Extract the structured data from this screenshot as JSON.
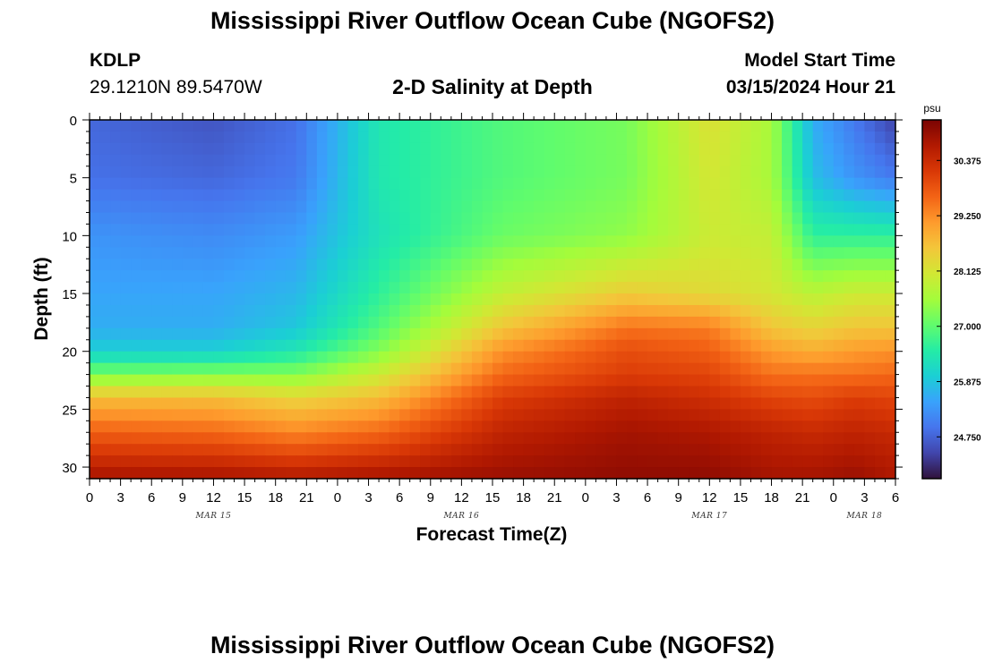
{
  "header": {
    "title": "Mississippi River Outflow Ocean Cube (NGOFS2)",
    "station": "KDLP",
    "coords": "29.1210N  89.5470W",
    "subtitle": "2-D Salinity at Depth",
    "model_label": "Model Start Time",
    "model_time": "03/15/2024 Hour 21"
  },
  "footer": {
    "title": "Mississippi River Outflow Ocean Cube (NGOFS2)"
  },
  "chart_data": {
    "type": "heatmap",
    "title": "2-D Salinity at Depth",
    "xlabel": "Forecast Time(Z)",
    "ylabel": "Depth (ft)",
    "x_unit": "hours",
    "x_tick_labels": [
      "0",
      "3",
      "6",
      "9",
      "12",
      "15",
      "18",
      "21",
      "0",
      "3",
      "6",
      "9",
      "12",
      "15",
      "18",
      "21",
      "0",
      "3",
      "6",
      "9",
      "12",
      "15",
      "18",
      "21",
      "0",
      "3",
      "6"
    ],
    "date_labels": [
      {
        "label": "MAR 15",
        "hour_index": 12
      },
      {
        "label": "MAR 16",
        "hour_index": 36
      },
      {
        "label": "MAR 17",
        "hour_index": 60
      },
      {
        "label": "MAR 18",
        "hour_index": 75
      }
    ],
    "y_ticks": [
      0,
      5,
      10,
      15,
      20,
      25,
      30
    ],
    "ylim": [
      0,
      31
    ],
    "x_range_hours": [
      0,
      78
    ],
    "colorbar": {
      "unit": "psu",
      "range": [
        23.9,
        31.2
      ],
      "ticks": [
        "24.750",
        "25.875",
        "27.000",
        "28.125",
        "29.250",
        "30.375"
      ],
      "colors": [
        "#30123b",
        "#4145ab",
        "#4675ed",
        "#39a2fc",
        "#1bcfd4",
        "#24eca6",
        "#61fc6c",
        "#a4fc3b",
        "#d1e834",
        "#f3c63a",
        "#fe9b2d",
        "#f36315",
        "#d93806",
        "#b11901",
        "#7a0403"
      ]
    },
    "salinity_keyframes_hours": [
      0,
      12,
      20,
      28,
      40,
      52,
      60,
      66,
      70,
      74,
      78
    ],
    "salinity_depths_ft": [
      0,
      5,
      10,
      15,
      18,
      20,
      22,
      24,
      27,
      31
    ],
    "salinity_psu": [
      [
        24.8,
        24.6,
        24.9,
        26.4,
        26.9,
        27.2,
        28.2,
        27.6,
        25.6,
        25.0,
        24.4
      ],
      [
        24.9,
        24.8,
        25.0,
        26.4,
        26.9,
        27.2,
        28.1,
        27.6,
        25.8,
        25.3,
        25.0
      ],
      [
        25.3,
        25.2,
        25.4,
        26.3,
        27.1,
        27.4,
        28.0,
        27.9,
        26.6,
        26.6,
        26.6
      ],
      [
        25.5,
        25.5,
        25.7,
        26.6,
        27.9,
        28.5,
        28.3,
        28.1,
        27.8,
        28.0,
        28.0
      ],
      [
        25.6,
        25.6,
        25.9,
        26.9,
        28.6,
        29.5,
        29.4,
        28.6,
        28.4,
        28.6,
        28.6
      ],
      [
        26.0,
        26.0,
        26.4,
        27.3,
        29.2,
        29.9,
        29.7,
        29.1,
        28.9,
        29.1,
        29.2
      ],
      [
        27.2,
        27.3,
        27.3,
        28.0,
        29.6,
        30.1,
        30.0,
        29.5,
        29.5,
        29.5,
        29.6
      ],
      [
        28.7,
        28.7,
        28.4,
        28.7,
        30.1,
        30.5,
        30.3,
        30.0,
        29.9,
        30.1,
        30.0
      ],
      [
        29.7,
        29.6,
        29.3,
        29.6,
        30.5,
        30.8,
        30.7,
        30.5,
        30.4,
        30.5,
        30.4
      ],
      [
        30.8,
        30.8,
        30.7,
        30.8,
        30.9,
        31.0,
        31.0,
        30.8,
        30.8,
        30.9,
        30.7
      ]
    ]
  }
}
